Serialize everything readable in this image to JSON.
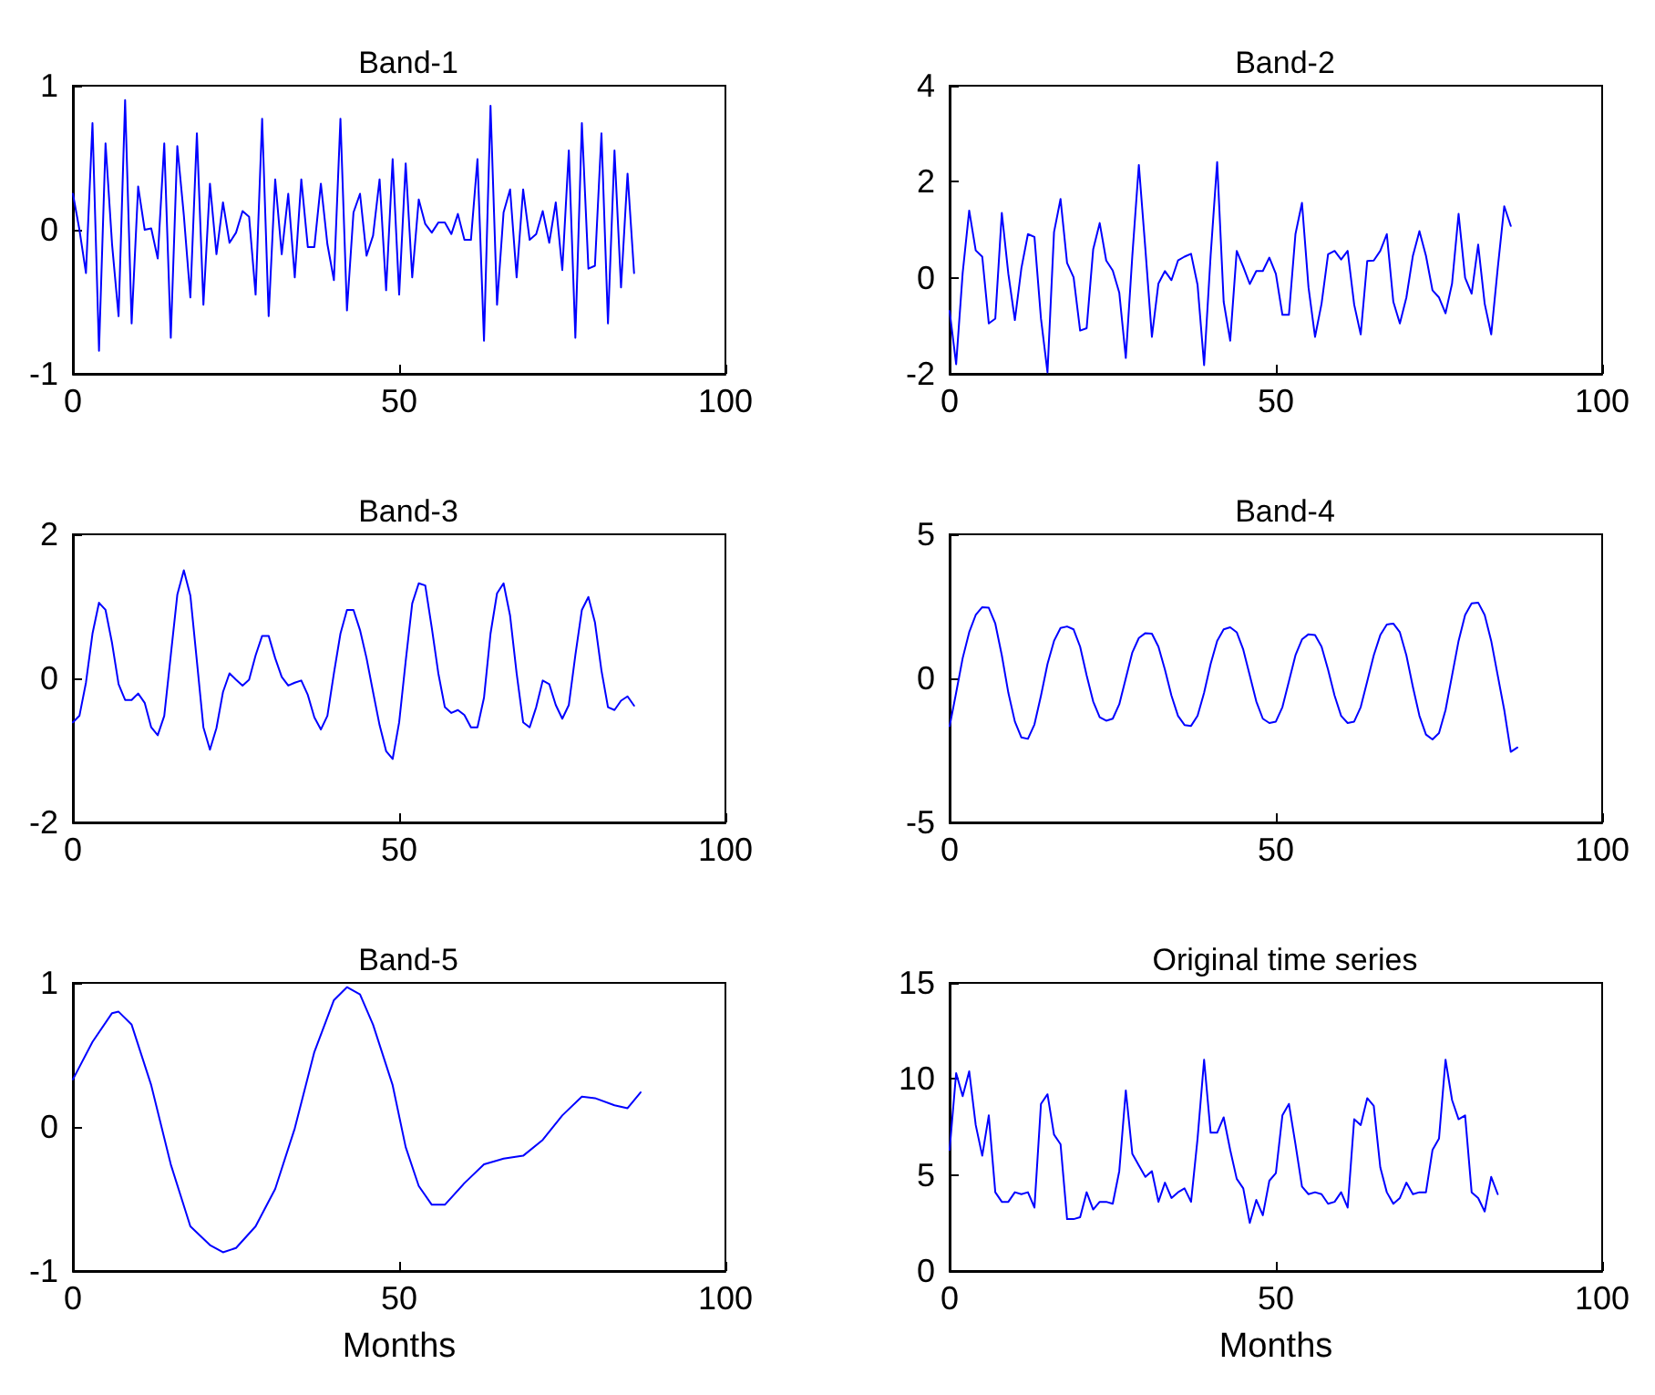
{
  "chart_data": [
    {
      "type": "line",
      "title": "Band-1",
      "xlim": [
        0,
        100
      ],
      "xticks": [
        0,
        50,
        100
      ],
      "ylim": [
        -1,
        1
      ],
      "yticks": [
        -1,
        0,
        1
      ],
      "grid": false,
      "marker": "none",
      "x": [
        0,
        1,
        2,
        3,
        4,
        5,
        6,
        7,
        8,
        9,
        10,
        11,
        12,
        13,
        14,
        15,
        16,
        17,
        18,
        19,
        20,
        21,
        22,
        23,
        24,
        25,
        26,
        27,
        28,
        29,
        30,
        31,
        32,
        33,
        34,
        35,
        36,
        37,
        38,
        39,
        40,
        41,
        42,
        43,
        44,
        45,
        46,
        47,
        48,
        49,
        50,
        51,
        52,
        53,
        54,
        55,
        56,
        57,
        58,
        59,
        60,
        61,
        62,
        63,
        64,
        65,
        66,
        67,
        68,
        69,
        70,
        71,
        72,
        73,
        74,
        75,
        76,
        77,
        78,
        79,
        80,
        81,
        82,
        83,
        84,
        85,
        86
      ],
      "series": [
        {
          "color": "#0000ff",
          "values": [
            0.25,
            0,
            -0.3,
            0.74,
            -0.84,
            0.6,
            -0.1,
            -0.6,
            0.9,
            -0.65,
            0.3,
            0,
            0.01,
            -0.2,
            0.6,
            -0.75,
            0.58,
            0.1,
            -0.47,
            0.67,
            -0.52,
            0.32,
            -0.17,
            0.19,
            -0.09,
            -0.02,
            0.13,
            0.09,
            -0.45,
            0.77,
            -0.6,
            0.35,
            -0.17,
            0.25,
            -0.33,
            0.35,
            -0.12,
            -0.12,
            0.32,
            -0.1,
            -0.35,
            0.77,
            -0.56,
            0.12,
            0.25,
            -0.18,
            -0.04,
            0.35,
            -0.42,
            0.49,
            -0.45,
            0.46,
            -0.33,
            0.21,
            0.04,
            -0.02,
            0.05,
            0.05,
            -0.03,
            0.11,
            -0.07,
            -0.07,
            0.49,
            -0.77,
            0.86,
            -0.52,
            0.12,
            0.28,
            -0.33,
            0.28,
            -0.07,
            -0.03,
            0.13,
            -0.09,
            0.19,
            -0.28,
            0.55,
            -0.75,
            0.74,
            -0.27,
            -0.25,
            0.67,
            -0.65,
            0.55,
            -0.4,
            0.39,
            -0.3
          ]
        }
      ]
    },
    {
      "type": "line",
      "title": "Band-2",
      "xlim": [
        0,
        100
      ],
      "xticks": [
        0,
        50,
        100
      ],
      "ylim": [
        -2,
        4
      ],
      "yticks": [
        -2,
        0,
        2,
        4
      ],
      "grid": false,
      "marker": "none",
      "x": [
        0,
        1,
        2,
        3,
        4,
        5,
        6,
        7,
        8,
        9,
        10,
        11,
        12,
        13,
        14,
        15,
        16,
        17,
        18,
        19,
        20,
        21,
        22,
        23,
        24,
        25,
        26,
        27,
        28,
        29,
        30,
        31,
        32,
        33,
        34,
        35,
        36,
        37,
        38,
        39,
        40,
        41,
        42,
        43,
        44,
        45,
        46,
        47,
        48,
        49,
        50,
        51,
        52,
        53,
        54,
        55,
        56,
        57,
        58,
        59,
        60,
        61,
        62,
        63,
        64,
        65,
        66,
        67,
        68,
        69,
        70,
        71,
        72,
        73,
        74,
        75,
        76,
        77,
        78,
        79,
        80,
        81,
        82,
        83,
        84,
        85,
        86
      ],
      "series": [
        {
          "color": "#0000ff",
          "values": [
            -0.69,
            -1.8,
            0.1,
            1.4,
            0.57,
            0.44,
            -0.95,
            -0.85,
            1.35,
            0.08,
            -0.88,
            0.2,
            0.91,
            0.85,
            -0.85,
            -1.97,
            0.95,
            1.64,
            0.31,
            0.01,
            -1.1,
            -1.05,
            0.59,
            1.14,
            0.36,
            0.15,
            -0.31,
            -1.67,
            0.46,
            2.35,
            0.6,
            -1.23,
            -0.12,
            0.14,
            -0.05,
            0.36,
            0.44,
            0.5,
            -0.15,
            -1.82,
            0.46,
            2.41,
            -0.5,
            -1.31,
            0.56,
            0.23,
            -0.13,
            0.14,
            0.14,
            0.42,
            0.08,
            -0.77,
            -0.77,
            0.91,
            1.56,
            -0.2,
            -1.23,
            -0.54,
            0.49,
            0.56,
            0.38,
            0.56,
            -0.56,
            -1.18,
            0.35,
            0.36,
            0.56,
            0.91,
            -0.5,
            -0.95,
            -0.41,
            0.46,
            0.97,
            0.46,
            -0.26,
            -0.41,
            -0.74,
            -0.12,
            1.33,
            0,
            -0.33,
            0.69,
            -0.54,
            -1.18,
            0.2,
            1.49,
            1.08
          ]
        }
      ]
    },
    {
      "type": "line",
      "title": "Band-3",
      "xlim": [
        0,
        100
      ],
      "xticks": [
        0,
        50,
        100
      ],
      "ylim": [
        -2,
        2
      ],
      "yticks": [
        -2,
        0,
        2
      ],
      "grid": false,
      "marker": "none",
      "x": [
        0,
        1,
        2,
        3,
        4,
        5,
        6,
        7,
        8,
        9,
        10,
        11,
        12,
        13,
        14,
        15,
        16,
        17,
        18,
        19,
        20,
        21,
        22,
        23,
        24,
        25,
        26,
        27,
        28,
        29,
        30,
        31,
        32,
        33,
        34,
        35,
        36,
        37,
        38,
        39,
        40,
        41,
        42,
        43,
        44,
        45,
        46,
        47,
        48,
        49,
        50,
        51,
        52,
        53,
        54,
        55,
        56,
        57,
        58,
        59,
        60,
        61,
        62,
        63,
        64,
        65,
        66,
        67,
        68,
        69,
        70,
        71,
        72,
        73,
        74,
        75,
        76,
        77,
        78,
        79,
        80,
        81,
        82,
        83,
        84,
        85,
        86
      ],
      "series": [
        {
          "color": "#0000ff",
          "values": [
            -0.61,
            -0.52,
            -0.06,
            0.62,
            1.05,
            0.95,
            0.49,
            -0.08,
            -0.3,
            -0.3,
            -0.21,
            -0.34,
            -0.68,
            -0.79,
            -0.52,
            0.32,
            1.16,
            1.5,
            1.15,
            0.24,
            -0.68,
            -0.99,
            -0.69,
            -0.19,
            0.07,
            -0.02,
            -0.1,
            -0.02,
            0.32,
            0.59,
            0.59,
            0.28,
            0.02,
            -0.1,
            -0.06,
            -0.03,
            -0.23,
            -0.54,
            -0.71,
            -0.52,
            0.07,
            0.62,
            0.95,
            0.95,
            0.67,
            0.28,
            -0.19,
            -0.65,
            -1.01,
            -1.12,
            -0.61,
            0.24,
            1.04,
            1.32,
            1.29,
            0.7,
            0.07,
            -0.4,
            -0.48,
            -0.44,
            -0.51,
            -0.68,
            -0.68,
            -0.27,
            0.62,
            1.18,
            1.32,
            0.87,
            0.07,
            -0.61,
            -0.68,
            -0.4,
            -0.03,
            -0.08,
            -0.37,
            -0.56,
            -0.37,
            0.32,
            0.95,
            1.13,
            0.78,
            0.11,
            -0.4,
            -0.44,
            -0.31,
            -0.25,
            -0.38
          ]
        }
      ]
    },
    {
      "type": "line",
      "title": "Band-4",
      "xlim": [
        0,
        100
      ],
      "xticks": [
        0,
        50,
        100
      ],
      "ylim": [
        -5,
        5
      ],
      "yticks": [
        -5,
        0,
        5
      ],
      "grid": false,
      "marker": "none",
      "x": [
        0,
        1,
        2,
        3,
        4,
        5,
        6,
        7,
        8,
        9,
        10,
        11,
        12,
        13,
        14,
        15,
        16,
        17,
        18,
        19,
        20,
        21,
        22,
        23,
        24,
        25,
        26,
        27,
        28,
        29,
        30,
        31,
        32,
        33,
        34,
        35,
        36,
        37,
        38,
        39,
        40,
        41,
        42,
        43,
        44,
        45,
        46,
        47,
        48,
        49,
        50,
        51,
        52,
        53,
        54,
        55,
        56,
        57,
        58,
        59,
        60,
        61,
        62,
        63,
        64,
        65,
        66,
        67,
        68,
        69,
        70,
        71,
        72,
        73,
        74,
        75,
        76,
        77,
        78,
        79,
        80,
        81,
        82,
        83,
        84,
        85,
        86,
        87
      ],
      "series": [
        {
          "color": "#0000ff",
          "values": [
            -1.66,
            -0.5,
            0.7,
            1.6,
            2.2,
            2.47,
            2.45,
            1.9,
            0.8,
            -0.5,
            -1.5,
            -2.05,
            -2.1,
            -1.6,
            -0.6,
            0.5,
            1.3,
            1.75,
            1.8,
            1.7,
            1.1,
            0.1,
            -0.8,
            -1.35,
            -1.47,
            -1.4,
            -0.9,
            0,
            0.9,
            1.4,
            1.57,
            1.55,
            1.1,
            0.3,
            -0.6,
            -1.3,
            -1.62,
            -1.65,
            -1.3,
            -0.5,
            0.5,
            1.3,
            1.7,
            1.77,
            1.6,
            1,
            0.1,
            -0.8,
            -1.4,
            -1.55,
            -1.5,
            -1,
            -0.1,
            0.8,
            1.35,
            1.53,
            1.5,
            1.1,
            0.3,
            -0.6,
            -1.3,
            -1.55,
            -1.5,
            -1,
            -0.1,
            0.8,
            1.5,
            1.87,
            1.9,
            1.6,
            0.8,
            -0.3,
            -1.3,
            -1.95,
            -2.12,
            -1.9,
            -1.1,
            0.1,
            1.3,
            2.2,
            2.6,
            2.63,
            2.2,
            1.3,
            0.1,
            -1.1,
            -2.55,
            -2.4
          ]
        }
      ]
    },
    {
      "type": "line",
      "title": "Band-5",
      "xlabel": "Months",
      "xlim": [
        0,
        100
      ],
      "xticks": [
        0,
        50,
        100
      ],
      "ylim": [
        -1,
        1
      ],
      "yticks": [
        -1,
        0,
        1
      ],
      "grid": false,
      "marker": "none",
      "x": [
        0,
        3,
        6,
        7,
        9,
        12,
        15,
        18,
        21,
        23,
        25,
        28,
        31,
        34,
        37,
        40,
        42,
        44,
        46,
        49,
        51,
        53,
        55,
        57,
        60,
        63,
        66,
        69,
        72,
        75,
        78,
        80,
        83,
        85,
        87
      ],
      "series": [
        {
          "color": "#0000ff",
          "values": [
            0.33,
            0.59,
            0.79,
            0.8,
            0.71,
            0.29,
            -0.26,
            -0.69,
            -0.82,
            -0.87,
            -0.84,
            -0.69,
            -0.43,
            -0.01,
            0.52,
            0.88,
            0.97,
            0.92,
            0.71,
            0.29,
            -0.14,
            -0.41,
            -0.54,
            -0.54,
            -0.39,
            -0.26,
            -0.22,
            -0.2,
            -0.09,
            0.08,
            0.21,
            0.2,
            0.15,
            0.13,
            0.24
          ]
        }
      ]
    },
    {
      "type": "line",
      "title": "Original time series",
      "xlabel": "Months",
      "xlim": [
        0,
        100
      ],
      "xticks": [
        0,
        50,
        100
      ],
      "ylim": [
        0,
        15
      ],
      "yticks": [
        0,
        5,
        10,
        15
      ],
      "grid": false,
      "marker": "none",
      "x": [
        0,
        1,
        2,
        3,
        4,
        5,
        6,
        7,
        8,
        9,
        10,
        11,
        12,
        13,
        14,
        15,
        16,
        17,
        18,
        19,
        20,
        21,
        22,
        23,
        24,
        25,
        26,
        27,
        28,
        29,
        30,
        31,
        32,
        33,
        34,
        35,
        36,
        37,
        38,
        39,
        40,
        41,
        42,
        43,
        44,
        45,
        46,
        47,
        48,
        49,
        50,
        51,
        52,
        53,
        54,
        55,
        56,
        57,
        58,
        59,
        60,
        61,
        62,
        63,
        64,
        65,
        66,
        67,
        68,
        69,
        70,
        71,
        72,
        73,
        74,
        75,
        76,
        77,
        78,
        79,
        80,
        81,
        82,
        83,
        84
      ],
      "series": [
        {
          "color": "#0000ff",
          "values": [
            6.3,
            10.3,
            9.1,
            10.4,
            7.6,
            6,
            8.1,
            4.1,
            3.6,
            3.6,
            4.1,
            4,
            4.1,
            3.3,
            8.7,
            9.2,
            7.1,
            6.6,
            2.7,
            2.7,
            2.8,
            4.1,
            3.2,
            3.6,
            3.6,
            3.5,
            5.2,
            9.4,
            6.1,
            5.5,
            4.9,
            5.2,
            3.6,
            4.6,
            3.8,
            4.1,
            4.3,
            3.6,
            6.9,
            11,
            7.2,
            7.2,
            8,
            6.3,
            4.8,
            4.3,
            2.5,
            3.7,
            2.9,
            4.7,
            5.1,
            8.1,
            8.7,
            6.6,
            4.4,
            4,
            4.1,
            4,
            3.5,
            3.6,
            4.1,
            3.3,
            7.9,
            7.6,
            9,
            8.6,
            5.4,
            4.1,
            3.5,
            3.8,
            4.6,
            4,
            4.1,
            4.1,
            6.3,
            6.9,
            11,
            8.9,
            7.9,
            8.1,
            4.1,
            3.8,
            3.1,
            4.9,
            4
          ]
        }
      ]
    }
  ]
}
